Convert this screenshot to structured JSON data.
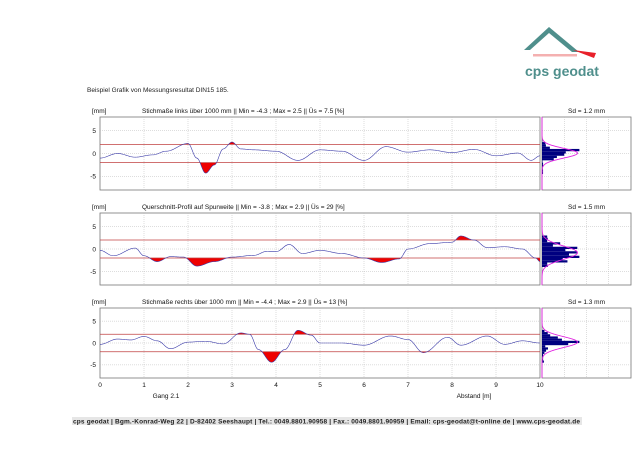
{
  "document": {
    "heading": "Beispiel Grafik von Messungsresultat DIN15 185.",
    "logo_text": "cps geodat",
    "footer": "cps geodat | Bgm.-Konrad-Weg 22 | D-82402 Seeshaupt | Tel.: 0049.8801.90958 | Fax.: 0049.8801.90959 | Email: cps-geodat@t-online de | www.cps-geodat.de",
    "colors": {
      "logo": "#4f8f8c",
      "arrow": "#e8202a",
      "line": "#3a3aa8",
      "exceed": "#ee0000",
      "limit": "#c04040",
      "hist": "#000080",
      "normal": "#e020e0"
    }
  },
  "chart_data": [
    {
      "type": "line",
      "unit_label": "[mm]",
      "title": "Stichmaße links über 1000 mm  ||  Min = -4.3 ; Max = 2.5  ||  Üs = 7.5 [%]",
      "sd_label": "Sd = 1.2 mm",
      "ylim": [
        -8,
        8
      ],
      "xlim": [
        0,
        10
      ],
      "yticks": [
        "5",
        "0",
        "-5"
      ],
      "limits": [
        -2,
        2
      ],
      "grid": true,
      "x": [
        0,
        0.4,
        0.8,
        1.2,
        1.5,
        2.0,
        2.2,
        2.4,
        2.6,
        2.8,
        3.0,
        3.2,
        3.5,
        4.0,
        4.5,
        5.0,
        5.5,
        6.0,
        6.5,
        7.0,
        7.5,
        8.0,
        8.5,
        9.0,
        9.5,
        9.8,
        10
      ],
      "y": [
        -1,
        0,
        -0.8,
        -0.3,
        0.5,
        2.2,
        -1,
        -4.3,
        -2.5,
        1,
        2.5,
        1,
        0.8,
        0.5,
        -1.5,
        0.8,
        0.5,
        -1.5,
        1.5,
        0.3,
        0.8,
        0.2,
        0.9,
        -0.5,
        0.1,
        -1.5,
        -0.5
      ]
    },
    {
      "type": "line",
      "unit_label": "[mm]",
      "title": "Querschnitt-Profil auf Spurweite  ||  Min = -3.8 ; Max = 2.9  ||  Üs = 29 [%]",
      "sd_label": "Sd = 1.5 mm",
      "ylim": [
        -8,
        8
      ],
      "xlim": [
        0,
        10
      ],
      "yticks": [
        "5",
        "0",
        "-5"
      ],
      "limits": [
        -2,
        2
      ],
      "grid": true,
      "x": [
        0,
        0.3,
        0.8,
        1.0,
        1.3,
        1.6,
        1.9,
        2.2,
        2.6,
        3.0,
        3.5,
        3.8,
        4.0,
        4.3,
        4.6,
        5.0,
        5.5,
        6.0,
        6.4,
        6.8,
        7.0,
        7.5,
        8.0,
        8.2,
        8.5,
        8.8,
        9.2,
        9.6,
        9.9,
        10
      ],
      "y": [
        -0.3,
        -1.5,
        0.2,
        -1.5,
        -2.8,
        -1.7,
        -1.8,
        -3.8,
        -2.8,
        -1.8,
        -1.4,
        -0.5,
        -0.6,
        1.0,
        -1.0,
        -0.3,
        -1.0,
        -2.0,
        -3.0,
        -2.2,
        0,
        1.2,
        1.5,
        2.9,
        2,
        0.3,
        0.5,
        0,
        -2.0,
        -2.8
      ]
    },
    {
      "type": "line",
      "unit_label": "[mm]",
      "title": "Stichmaße rechts über 1000 mm  ||  Min = -4.4 ; Max = 2.9  ||  Üs = 13 [%]",
      "sd_label": "Sd = 1.3 mm",
      "ylim": [
        -8,
        8
      ],
      "xlim": [
        0,
        10
      ],
      "yticks": [
        "5",
        "0",
        "-5"
      ],
      "limits": [
        -2,
        2
      ],
      "grid": true,
      "xticks": [
        "0",
        "1",
        "2",
        "3",
        "4",
        "5",
        "6",
        "7",
        "8",
        "9",
        "10"
      ],
      "xlabel": "Abstand [m]",
      "sublabel": "Gang 2.1",
      "x": [
        0,
        0.4,
        0.7,
        1.0,
        1.3,
        1.6,
        2.0,
        2.4,
        2.8,
        3.2,
        3.4,
        3.6,
        3.9,
        4.2,
        4.5,
        4.8,
        5.0,
        5.5,
        6.0,
        6.6,
        7.0,
        7.35,
        7.9,
        8.2,
        8.8,
        9.2,
        9.6,
        10
      ],
      "y": [
        -0.3,
        0.9,
        0.7,
        1.5,
        0.5,
        -1.3,
        0.2,
        0.4,
        -0.2,
        2.3,
        2.0,
        -1.5,
        -4.4,
        -1.5,
        2.9,
        1.8,
        0,
        0,
        -0.5,
        1.6,
        0.8,
        -2.2,
        1.3,
        -0.5,
        1.6,
        -0.3,
        0.5,
        0
      ]
    }
  ]
}
